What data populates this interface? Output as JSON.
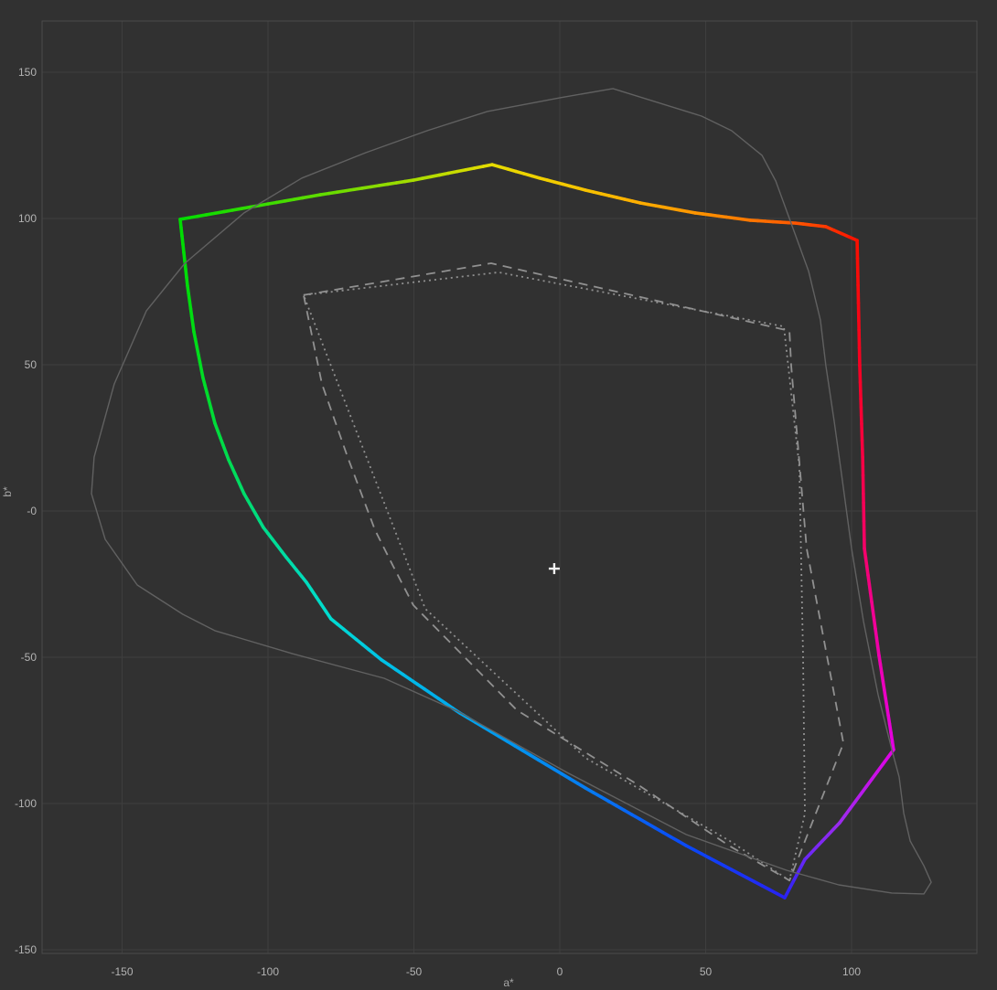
{
  "figure": {
    "background": "#313131",
    "grid_color": "#3e3e3e",
    "frame_color": "#4a4a4a",
    "tick_label_color": "#b3b3b3",
    "axis_title_color": "#a6a6a6",
    "whitepoint_color": "#f2f2f2",
    "reference_line_color": "#909090",
    "locus_line_color": "#616161"
  },
  "axes": {
    "x_title": "a*",
    "y_title": "b*",
    "x_ticks": [
      {
        "value": -150,
        "label": "-150"
      },
      {
        "value": -100,
        "label": "-100"
      },
      {
        "value": -50,
        "label": "-50"
      },
      {
        "value": 0,
        "label": "0"
      },
      {
        "value": 50,
        "label": "50"
      },
      {
        "value": 100,
        "label": "100"
      }
    ],
    "y_ticks": [
      {
        "value": 150,
        "label": "150"
      },
      {
        "value": 100,
        "label": "100"
      },
      {
        "value": 50,
        "label": "50"
      },
      {
        "value": 0,
        "label": "-0"
      },
      {
        "value": -50,
        "label": "-50"
      },
      {
        "value": -100,
        "label": "-100"
      },
      {
        "value": -150,
        "label": "-150"
      }
    ]
  },
  "chart_data": {
    "type": "line",
    "title": "",
    "xlabel": "a*",
    "ylabel": "b*",
    "xlim": [
      -177,
      143
    ],
    "ylim": [
      -151,
      167
    ],
    "grid": true,
    "whitepoint": {
      "name": "whitepoint-marker",
      "a": -1.9,
      "b": -19.7
    },
    "series": [
      {
        "name": "display-gamut-outline",
        "style": "solid-multicolor",
        "closed": true,
        "points": [
          [
            -130.1,
            99.7,
            "#00DC00"
          ],
          [
            -82.1,
            108.1,
            "#5FDC00"
          ],
          [
            -50.2,
            113.1,
            "#A5DC00"
          ],
          [
            -23.2,
            118.4,
            "#E6DC00"
          ],
          [
            -6.9,
            113.8,
            "#EFD000"
          ],
          [
            8.8,
            109.7,
            "#F6C200"
          ],
          [
            27.6,
            105.3,
            "#FFAE00"
          ],
          [
            46.4,
            101.9,
            "#FF9600"
          ],
          [
            65.2,
            99.4,
            "#FF7800"
          ],
          [
            80.9,
            98.4,
            "#FF5800"
          ],
          [
            91.2,
            97.2,
            "#FF3A00"
          ],
          [
            101.9,
            92.5,
            "#FA1000"
          ],
          [
            102.8,
            49.7,
            "#F70022"
          ],
          [
            103.8,
            18.4,
            "#F60042"
          ],
          [
            104.4,
            -12.8,
            "#F40268"
          ],
          [
            109.4,
            -49.4,
            "#EE00AC"
          ],
          [
            114.4,
            -81.6,
            "#E400E4"
          ],
          [
            95.9,
            -106.6,
            "#9C2BEE"
          ],
          [
            84.0,
            -119.1,
            "#6A28F6"
          ],
          [
            77.1,
            -132.2,
            "#2822F2"
          ],
          [
            43.3,
            -114.4,
            "#0A48F6"
          ],
          [
            8.8,
            -94.7,
            "#067CF2"
          ],
          [
            -34.2,
            -69.1,
            "#00A6EC"
          ],
          [
            -61.1,
            -50.9,
            "#00C2E6"
          ],
          [
            -78.4,
            -36.9,
            "#00DCD2"
          ],
          [
            -86.8,
            -24.4,
            "#00DCBE"
          ],
          [
            -93.7,
            -15.9,
            "#00DCA6"
          ],
          [
            -101.6,
            -5.6,
            "#00DC8A"
          ],
          [
            -108.2,
            5.9,
            "#00DC6C"
          ],
          [
            -113.5,
            17.5,
            "#00DC52"
          ],
          [
            -118.2,
            30.0,
            "#00DC3A"
          ],
          [
            -122.3,
            45.6,
            "#00DC26"
          ],
          [
            -125.4,
            61.3,
            "#00DC14"
          ],
          [
            -127.6,
            77.0,
            "#00DC0A"
          ]
        ]
      },
      {
        "name": "reference-gamut-dashed",
        "style": "dashed",
        "closed": true,
        "points": [
          [
            -87.8,
            73.8
          ],
          [
            -23.5,
            84.7
          ],
          [
            78.7,
            61.6
          ],
          [
            79.3,
            49.7
          ],
          [
            84.6,
            -12.8
          ],
          [
            97.2,
            -79.4
          ],
          [
            78.7,
            -126.3
          ],
          [
            58.0,
            -114.4
          ],
          [
            27.6,
            -94.1
          ],
          [
            -14.7,
            -68.1
          ],
          [
            -50.2,
            -32.2
          ],
          [
            -57.0,
            -19.1
          ],
          [
            -63.3,
            -6.6
          ],
          [
            -72.7,
            18.4
          ],
          [
            -81.5,
            43.4
          ]
        ]
      },
      {
        "name": "reference-gamut-dotted",
        "style": "dotted",
        "closed": true,
        "points": [
          [
            -87.8,
            73.8
          ],
          [
            -21.0,
            81.6
          ],
          [
            76.8,
            63.1
          ],
          [
            82.1,
            15.0
          ],
          [
            83.4,
            -50.0
          ],
          [
            84.0,
            -103.4
          ],
          [
            78.7,
            -126.3
          ],
          [
            58.3,
            -112.8
          ],
          [
            8.8,
            -84.4
          ],
          [
            -46.1,
            -33.4
          ]
        ]
      },
      {
        "name": "spectral-locus",
        "style": "thin-solid",
        "closed": true,
        "points": [
          [
            -66.5,
            122.5
          ],
          [
            -45.5,
            130.0
          ],
          [
            -24.8,
            136.6
          ],
          [
            0.3,
            141.3
          ],
          [
            18.2,
            144.4
          ],
          [
            48.6,
            135.0
          ],
          [
            58.9,
            130.0
          ],
          [
            69.3,
            121.6
          ],
          [
            74.0,
            112.8
          ],
          [
            85.3,
            81.9
          ],
          [
            89.3,
            65.3
          ],
          [
            91.2,
            49.7
          ],
          [
            94.0,
            30.9
          ],
          [
            96.6,
            12.2
          ],
          [
            100.0,
            -12.8
          ],
          [
            104.1,
            -37.8
          ],
          [
            109.1,
            -62.8
          ],
          [
            113.8,
            -81.6
          ],
          [
            116.3,
            -90.9
          ],
          [
            117.9,
            -103.4
          ],
          [
            120.1,
            -112.8
          ],
          [
            124.8,
            -121.3
          ],
          [
            127.3,
            -126.9
          ],
          [
            124.8,
            -130.9
          ],
          [
            113.8,
            -130.6
          ],
          [
            95.6,
            -127.8
          ],
          [
            77.7,
            -122.8
          ],
          [
            43.3,
            -110.6
          ],
          [
            2.5,
            -89.4
          ],
          [
            -35.1,
            -68.4
          ],
          [
            -60.2,
            -57.2
          ],
          [
            -91.5,
            -48.8
          ],
          [
            -118.2,
            -40.9
          ],
          [
            -129.2,
            -35.3
          ],
          [
            -144.8,
            -25.3
          ],
          [
            -155.8,
            -9.7
          ],
          [
            -160.5,
            5.9
          ],
          [
            -159.6,
            18.4
          ],
          [
            -152.7,
            43.4
          ],
          [
            -141.7,
            68.4
          ],
          [
            -128.5,
            84.7
          ],
          [
            -108.2,
            101.9
          ],
          [
            -88.4,
            113.8
          ]
        ]
      }
    ]
  }
}
